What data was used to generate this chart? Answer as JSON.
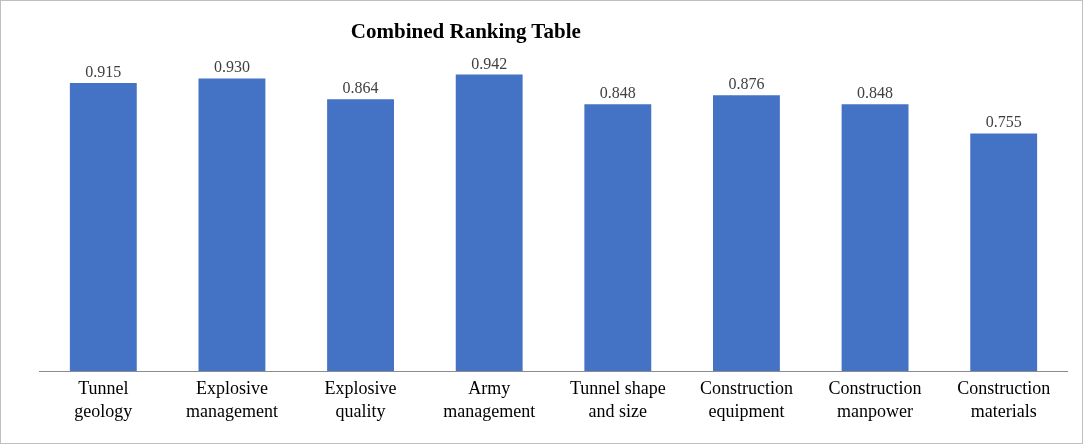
{
  "chart_data": {
    "type": "bar",
    "title": "Combined Ranking Table",
    "categories": [
      "Tunnel geology",
      "Explosive management",
      "Explosive quality",
      "Army management",
      "Tunnel shape and size",
      "Construction equipment",
      "Construction manpower",
      "Construction materials"
    ],
    "values": [
      0.915,
      0.93,
      0.864,
      0.942,
      0.848,
      0.876,
      0.848,
      0.755
    ],
    "value_labels": [
      "0.915",
      "0.930",
      "0.864",
      "0.942",
      "0.848",
      "0.876",
      "0.848",
      "0.755"
    ],
    "color": "#4472c4"
  }
}
